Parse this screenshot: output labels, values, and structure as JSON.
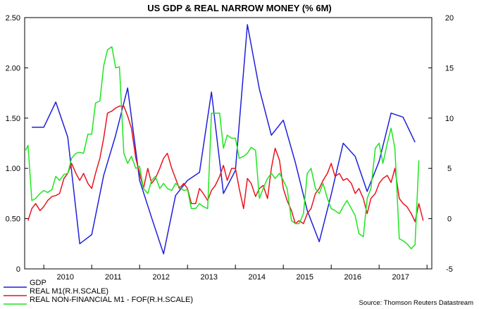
{
  "chart_data": {
    "type": "line",
    "title": "US GDP & REAL NARROW MONEY (% 6M)",
    "source": "Source: Thomson Reuters Datastream",
    "x_tick_labels": [
      "2010",
      "2011",
      "2012",
      "2013",
      "2014",
      "2015",
      "2016",
      "2017"
    ],
    "xlim": [
      2009.6,
      2018.1
    ],
    "y_left": {
      "ylim": [
        0,
        2.5
      ],
      "ticks": [
        "0",
        "0.50",
        "1.00",
        "1.50",
        "2.00",
        "2.50"
      ]
    },
    "y_right": {
      "ylim": [
        -5,
        20
      ],
      "ticks": [
        "-5",
        "0",
        "5",
        "10",
        "15",
        "20"
      ]
    },
    "grid": false,
    "legend_position": "bottom-left",
    "series": [
      {
        "name": "GDP",
        "axis": "left",
        "color": "#1f1fdc",
        "x": [
          2009.75,
          2010.0,
          2010.25,
          2010.5,
          2010.75,
          2011.0,
          2011.25,
          2011.5,
          2011.75,
          2012.0,
          2012.25,
          2012.5,
          2012.75,
          2013.0,
          2013.25,
          2013.5,
          2013.75,
          2014.0,
          2014.25,
          2014.5,
          2014.75,
          2015.0,
          2015.25,
          2015.5,
          2015.75,
          2016.0,
          2016.25,
          2016.5,
          2016.75,
          2017.0,
          2017.25,
          2017.5,
          2017.75
        ],
        "values": [
          1.41,
          1.41,
          1.66,
          1.31,
          0.25,
          0.34,
          0.93,
          1.33,
          1.8,
          0.88,
          0.51,
          0.15,
          0.73,
          0.88,
          0.96,
          1.76,
          0.75,
          0.98,
          2.43,
          1.79,
          1.33,
          1.48,
          1.06,
          0.58,
          0.27,
          0.74,
          1.25,
          1.12,
          0.77,
          1.07,
          1.55,
          1.51,
          1.26
        ]
      },
      {
        "name": "REAL M1(R.H.SCALE)",
        "axis": "right",
        "color": "#e8141e",
        "x": [
          2009.67,
          2009.75,
          2009.83,
          2009.92,
          2010.0,
          2010.08,
          2010.17,
          2010.25,
          2010.33,
          2010.42,
          2010.5,
          2010.58,
          2010.67,
          2010.75,
          2010.83,
          2010.92,
          2011.0,
          2011.08,
          2011.17,
          2011.25,
          2011.33,
          2011.42,
          2011.5,
          2011.58,
          2011.67,
          2011.75,
          2011.83,
          2011.92,
          2012.0,
          2012.08,
          2012.17,
          2012.25,
          2012.33,
          2012.42,
          2012.5,
          2012.58,
          2012.67,
          2012.75,
          2012.83,
          2012.92,
          2013.0,
          2013.08,
          2013.17,
          2013.25,
          2013.33,
          2013.42,
          2013.5,
          2013.58,
          2013.67,
          2013.75,
          2013.83,
          2013.92,
          2014.0,
          2014.08,
          2014.17,
          2014.25,
          2014.33,
          2014.42,
          2014.5,
          2014.58,
          2014.67,
          2014.75,
          2014.83,
          2014.92,
          2015.0,
          2015.08,
          2015.17,
          2015.25,
          2015.33,
          2015.42,
          2015.5,
          2015.58,
          2015.67,
          2015.75,
          2015.83,
          2015.92,
          2016.0,
          2016.08,
          2016.17,
          2016.25,
          2016.33,
          2016.42,
          2016.5,
          2016.58,
          2016.67,
          2016.75,
          2016.83,
          2016.92,
          2017.0,
          2017.08,
          2017.17,
          2017.25,
          2017.33,
          2017.42,
          2017.5,
          2017.58,
          2017.67,
          2017.75,
          2017.83,
          2017.92
        ],
        "values": [
          -0.2,
          1.0,
          1.5,
          0.8,
          1.2,
          1.8,
          2.2,
          2.3,
          2.5,
          4.0,
          4.5,
          5.5,
          4.5,
          3.8,
          4.5,
          3.5,
          3.0,
          4.5,
          6.0,
          8.0,
          10.5,
          10.7,
          11.0,
          11.2,
          11.2,
          10.2,
          9.0,
          6.0,
          4.5,
          3.0,
          5.0,
          3.5,
          4.0,
          5.0,
          6.0,
          6.5,
          5.0,
          4.0,
          3.0,
          3.5,
          3.0,
          1.5,
          1.5,
          3.0,
          2.5,
          1.8,
          2.8,
          3.3,
          4.2,
          5.3,
          3.8,
          5.0,
          5.0,
          3.0,
          1.0,
          4.0,
          3.5,
          2.2,
          3.0,
          3.3,
          2.0,
          5.0,
          7.0,
          5.8,
          3.0,
          1.8,
          0.8,
          -0.5,
          -0.2,
          -0.5,
          0.5,
          1.0,
          2.5,
          3.0,
          3.8,
          4.5,
          5.5,
          4.2,
          4.5,
          3.8,
          4.0,
          3.5,
          2.5,
          3.0,
          2.0,
          0.5,
          2.0,
          2.5,
          3.5,
          4.0,
          4.3,
          3.6,
          5.0,
          2.0,
          1.5,
          1.2,
          0.5,
          -0.3,
          1.5,
          -0.2
        ]
      },
      {
        "name": "REAL NON-FINANCIAL M1 - FOF(R.H.SCALE)",
        "axis": "right",
        "color": "#1ee61e",
        "x": [
          2009.62,
          2009.67,
          2009.75,
          2009.83,
          2009.92,
          2010.0,
          2010.08,
          2010.17,
          2010.25,
          2010.33,
          2010.42,
          2010.5,
          2010.58,
          2010.67,
          2010.75,
          2010.83,
          2010.92,
          2011.0,
          2011.08,
          2011.17,
          2011.25,
          2011.33,
          2011.42,
          2011.5,
          2011.58,
          2011.67,
          2011.75,
          2011.83,
          2011.92,
          2012.0,
          2012.08,
          2012.17,
          2012.25,
          2012.33,
          2012.42,
          2012.5,
          2012.58,
          2012.67,
          2012.75,
          2012.83,
          2012.92,
          2013.0,
          2013.08,
          2013.17,
          2013.25,
          2013.33,
          2013.42,
          2013.5,
          2013.58,
          2013.67,
          2013.75,
          2013.83,
          2013.92,
          2014.0,
          2014.08,
          2014.17,
          2014.25,
          2014.33,
          2014.42,
          2014.5,
          2014.58,
          2014.67,
          2014.75,
          2014.83,
          2014.92,
          2015.0,
          2015.08,
          2015.17,
          2015.25,
          2015.33,
          2015.42,
          2015.5,
          2015.58,
          2015.67,
          2015.75,
          2015.83,
          2015.92,
          2016.0,
          2016.08,
          2016.17,
          2016.25,
          2016.33,
          2016.42,
          2016.5,
          2016.58,
          2016.67,
          2016.75,
          2016.83,
          2016.92,
          2017.0,
          2017.08,
          2017.17,
          2017.25,
          2017.33,
          2017.42,
          2017.5,
          2017.58,
          2017.67,
          2017.75,
          2017.83
        ],
        "values": [
          6.8,
          7.3,
          1.8,
          2.0,
          2.5,
          2.8,
          2.6,
          2.9,
          4.2,
          3.8,
          4.4,
          4.5,
          6.0,
          6.5,
          6.6,
          6.5,
          8.4,
          8.4,
          11.5,
          11.7,
          15.2,
          16.8,
          17.1,
          15.0,
          15.1,
          6.5,
          5.5,
          6.2,
          5.0,
          5.2,
          3.0,
          2.5,
          3.8,
          4.2,
          3.0,
          3.5,
          3.0,
          2.8,
          3.5,
          3.2,
          2.8,
          2.9,
          1.0,
          1.0,
          1.5,
          1.2,
          1.0,
          10.5,
          10.5,
          10.5,
          7.0,
          8.3,
          8.0,
          8.0,
          6.0,
          6.2,
          6.5,
          7.1,
          6.8,
          2.0,
          3.0,
          4.0,
          4.5,
          4.0,
          4.5,
          3.8,
          3.0,
          -0.2,
          -0.5,
          -0.5,
          0.5,
          4.5,
          5.0,
          3.0,
          2.5,
          3.5,
          2.0,
          1.0,
          0.8,
          0.5,
          1.2,
          1.8,
          1.0,
          0.3,
          -1.5,
          -1.8,
          2.0,
          3.0,
          7.0,
          7.5,
          5.5,
          7.5,
          9.0,
          7.0,
          -2.0,
          -2.2,
          -2.5,
          -3.0,
          -2.6,
          5.8
        ]
      }
    ]
  }
}
